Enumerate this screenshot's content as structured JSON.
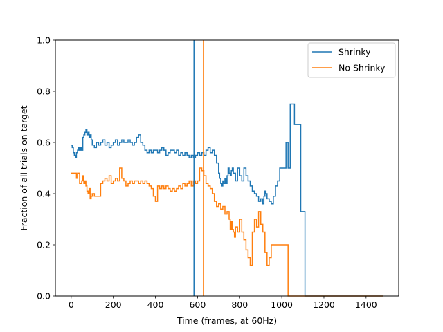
{
  "chart_data": {
    "type": "line",
    "title": "",
    "xlabel": "Time (frames, at 60Hz)",
    "ylabel": "Fraction of all trials on target",
    "xlim": [
      -75,
      1555
    ],
    "ylim": [
      0,
      1.0
    ],
    "xticks": [
      0,
      200,
      400,
      600,
      800,
      1000,
      1200,
      1400
    ],
    "yticks": [
      0.0,
      0.2,
      0.4,
      0.6,
      0.8,
      1.0
    ],
    "xtick_labels": [
      "0",
      "200",
      "400",
      "600",
      "800",
      "1000",
      "1200",
      "1400"
    ],
    "ytick_labels": [
      "0.0",
      "0.2",
      "0.4",
      "0.6",
      "0.8",
      "1.0"
    ],
    "grid": false,
    "legend_position": "top-right",
    "colors": {
      "Shrinky": "#1f77b4",
      "No Shrinky": "#ff7f0e"
    },
    "vlines": [
      {
        "series": "Shrinky",
        "x": 583
      },
      {
        "series": "No Shrinky",
        "x": 628
      }
    ],
    "series": [
      {
        "name": "Shrinky",
        "color": "#1f77b4",
        "x": [
          0,
          5,
          10,
          15,
          20,
          25,
          30,
          35,
          40,
          45,
          50,
          55,
          60,
          65,
          70,
          75,
          80,
          85,
          90,
          95,
          100,
          110,
          120,
          130,
          140,
          150,
          160,
          170,
          180,
          190,
          200,
          210,
          220,
          230,
          240,
          250,
          260,
          270,
          280,
          290,
          300,
          310,
          320,
          330,
          340,
          350,
          360,
          370,
          380,
          390,
          400,
          410,
          420,
          430,
          440,
          450,
          460,
          470,
          480,
          490,
          500,
          510,
          520,
          530,
          540,
          550,
          560,
          570,
          580,
          590,
          600,
          610,
          620,
          630,
          640,
          650,
          660,
          670,
          680,
          690,
          700,
          705,
          710,
          715,
          720,
          725,
          730,
          735,
          740,
          745,
          750,
          755,
          760,
          765,
          770,
          780,
          790,
          800,
          810,
          820,
          830,
          840,
          850,
          860,
          870,
          880,
          890,
          900,
          910,
          915,
          920,
          925,
          930,
          940,
          950,
          960,
          970,
          980,
          990,
          1000,
          1010,
          1020,
          1030,
          1040,
          1050,
          1060,
          1070,
          1080,
          1090,
          1100,
          1110,
          1120,
          1200,
          1300,
          1400,
          1480
        ],
        "values": [
          0.59,
          0.58,
          0.56,
          0.55,
          0.54,
          0.56,
          0.57,
          0.58,
          0.57,
          0.58,
          0.57,
          0.62,
          0.63,
          0.64,
          0.65,
          0.63,
          0.64,
          0.62,
          0.63,
          0.61,
          0.59,
          0.58,
          0.6,
          0.59,
          0.6,
          0.61,
          0.59,
          0.6,
          0.58,
          0.59,
          0.6,
          0.61,
          0.59,
          0.6,
          0.61,
          0.6,
          0.6,
          0.61,
          0.6,
          0.59,
          0.6,
          0.62,
          0.63,
          0.6,
          0.59,
          0.57,
          0.56,
          0.57,
          0.56,
          0.57,
          0.57,
          0.56,
          0.57,
          0.58,
          0.57,
          0.55,
          0.56,
          0.57,
          0.57,
          0.56,
          0.57,
          0.55,
          0.56,
          0.55,
          0.56,
          0.55,
          0.54,
          0.55,
          0.54,
          0.55,
          0.56,
          0.55,
          0.56,
          0.55,
          0.57,
          0.58,
          0.56,
          0.57,
          0.55,
          0.52,
          0.48,
          0.46,
          0.44,
          0.43,
          0.45,
          0.44,
          0.46,
          0.44,
          0.47,
          0.5,
          0.48,
          0.47,
          0.49,
          0.5,
          0.48,
          0.45,
          0.5,
          0.47,
          0.45,
          0.5,
          0.47,
          0.45,
          0.43,
          0.41,
          0.4,
          0.39,
          0.37,
          0.38,
          0.36,
          0.39,
          0.41,
          0.4,
          0.38,
          0.37,
          0.36,
          0.39,
          0.43,
          0.45,
          0.5,
          0.5,
          0.5,
          0.6,
          0.5,
          0.75,
          0.75,
          0.67,
          0.67,
          0.67,
          0.33,
          0.33,
          0.0,
          0.0,
          0.0,
          0.0,
          0.0,
          0.0
        ]
      },
      {
        "name": "No Shrinky",
        "color": "#ff7f0e",
        "x": [
          0,
          10,
          20,
          25,
          30,
          40,
          50,
          55,
          60,
          65,
          70,
          75,
          80,
          85,
          90,
          95,
          100,
          110,
          120,
          130,
          140,
          150,
          160,
          170,
          180,
          190,
          200,
          210,
          220,
          230,
          240,
          250,
          260,
          270,
          280,
          290,
          300,
          310,
          320,
          330,
          340,
          350,
          360,
          370,
          380,
          390,
          400,
          410,
          420,
          430,
          440,
          450,
          460,
          470,
          480,
          490,
          500,
          510,
          520,
          530,
          540,
          550,
          560,
          570,
          580,
          590,
          600,
          610,
          620,
          630,
          640,
          650,
          660,
          670,
          680,
          690,
          700,
          710,
          720,
          730,
          740,
          750,
          755,
          760,
          765,
          770,
          775,
          780,
          790,
          800,
          810,
          820,
          830,
          840,
          850,
          860,
          870,
          880,
          890,
          900,
          910,
          920,
          930,
          940,
          950,
          1000,
          1030,
          1040,
          1100,
          1200,
          1300,
          1400,
          1480
        ],
        "values": [
          0.48,
          0.48,
          0.48,
          0.46,
          0.48,
          0.44,
          0.45,
          0.47,
          0.44,
          0.45,
          0.43,
          0.41,
          0.4,
          0.42,
          0.38,
          0.39,
          0.4,
          0.39,
          0.39,
          0.39,
          0.44,
          0.45,
          0.46,
          0.45,
          0.47,
          0.44,
          0.45,
          0.46,
          0.45,
          0.5,
          0.46,
          0.45,
          0.43,
          0.44,
          0.45,
          0.44,
          0.45,
          0.45,
          0.44,
          0.45,
          0.44,
          0.45,
          0.44,
          0.43,
          0.42,
          0.39,
          0.37,
          0.43,
          0.42,
          0.43,
          0.42,
          0.43,
          0.42,
          0.41,
          0.42,
          0.41,
          0.42,
          0.43,
          0.42,
          0.44,
          0.43,
          0.44,
          0.45,
          0.43,
          0.45,
          0.44,
          0.45,
          0.5,
          0.49,
          0.47,
          0.44,
          0.43,
          0.42,
          0.4,
          0.37,
          0.35,
          0.36,
          0.34,
          0.35,
          0.32,
          0.33,
          0.3,
          0.26,
          0.29,
          0.26,
          0.25,
          0.23,
          0.27,
          0.25,
          0.3,
          0.25,
          0.22,
          0.18,
          0.15,
          0.12,
          0.25,
          0.3,
          0.27,
          0.33,
          0.28,
          0.25,
          0.17,
          0.12,
          0.15,
          0.2,
          0.2,
          0.0,
          0.0,
          0.0,
          0.0,
          0.0,
          0.0,
          0.0
        ]
      }
    ]
  }
}
